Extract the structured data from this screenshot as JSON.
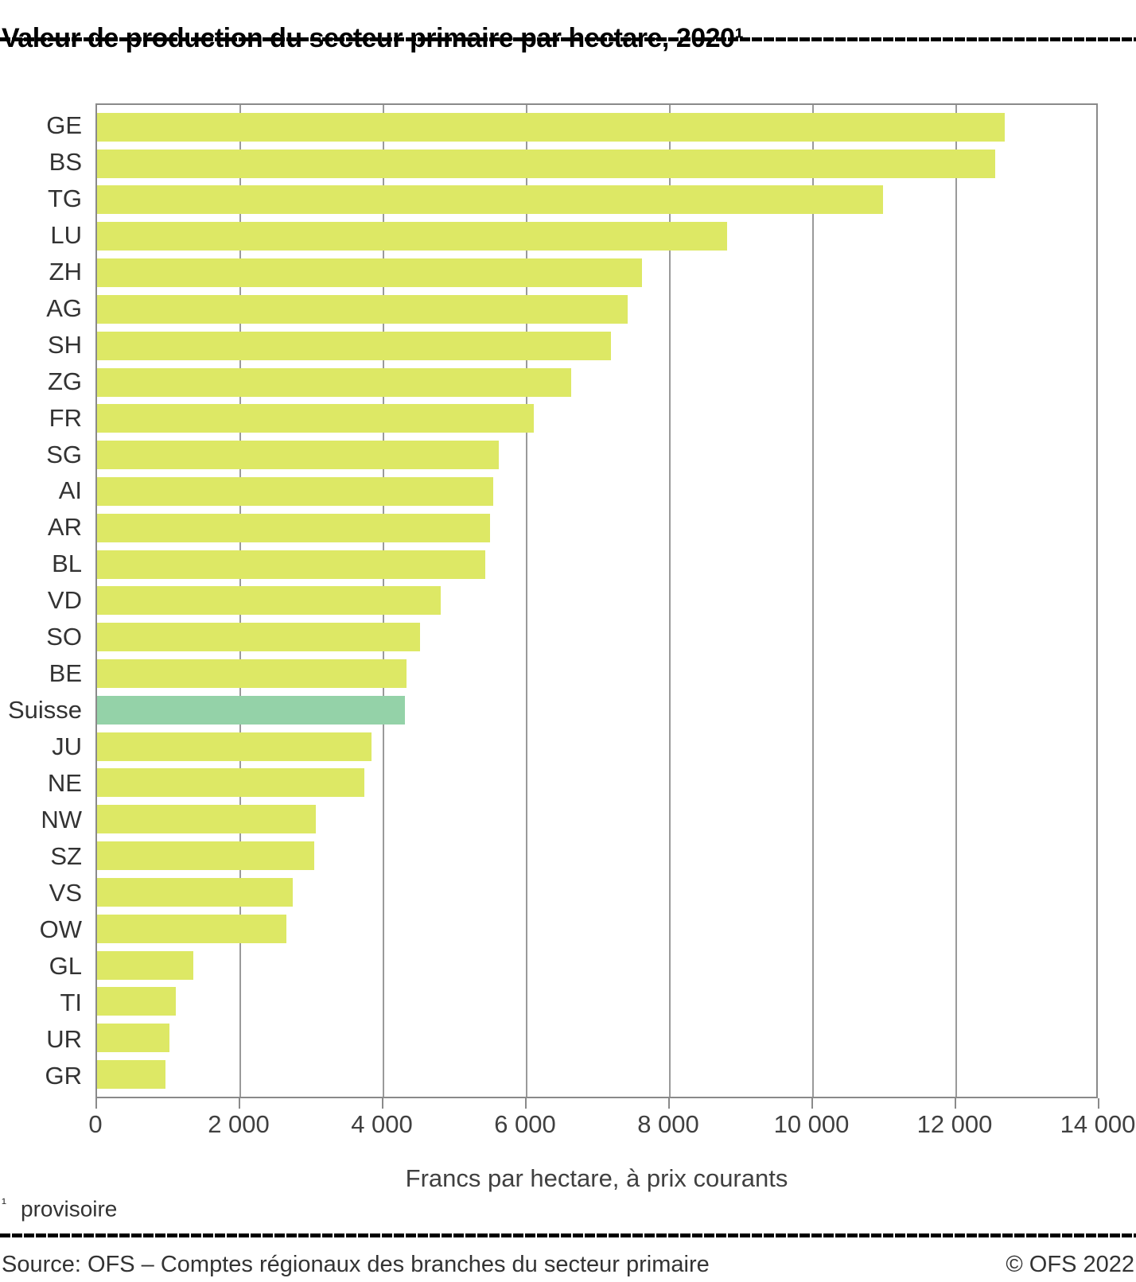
{
  "title": "Valeur de production du secteur primaire par hectare, 2020¹",
  "chart_data": {
    "type": "bar",
    "orientation": "horizontal",
    "title": "Valeur de production du secteur primaire par hectare, 2020¹",
    "xlabel": "Francs par hectare, à prix courants",
    "ylabel": "",
    "xlim": [
      0,
      14000
    ],
    "grid": "vertical",
    "categories": [
      "GE",
      "BS",
      "TG",
      "LU",
      "ZH",
      "AG",
      "SH",
      "ZG",
      "FR",
      "SG",
      "AI",
      "AR",
      "BL",
      "VD",
      "SO",
      "BE",
      "Suisse",
      "JU",
      "NE",
      "NW",
      "SZ",
      "VS",
      "OW",
      "GL",
      "TI",
      "UR",
      "GR"
    ],
    "values": [
      12720,
      12580,
      11010,
      8830,
      7630,
      7430,
      7200,
      6640,
      6120,
      5630,
      5550,
      5510,
      5440,
      4810,
      4530,
      4340,
      4310,
      3840,
      3740,
      3070,
      3040,
      2740,
      2650,
      1350,
      1100,
      1010,
      960
    ],
    "highlight_category": "Suisse",
    "xticks": [
      0,
      2000,
      4000,
      6000,
      8000,
      10000,
      12000,
      14000
    ],
    "xtick_labels": [
      "0",
      "2 000",
      "4 000",
      "6 000",
      "8 000",
      "10 000",
      "12 000",
      "14 000"
    ],
    "colors": {
      "bar": "#dde865",
      "highlight_bar": "#94d2a8",
      "gridline": "#9a9a9a",
      "axis": "#8a8a8a",
      "text": "#333333"
    }
  },
  "footnote": {
    "marker": "¹",
    "text": "provisoire"
  },
  "footer": {
    "source": "Source: OFS – Comptes régionaux des branches du secteur primaire",
    "copyright": "© OFS 2022"
  }
}
